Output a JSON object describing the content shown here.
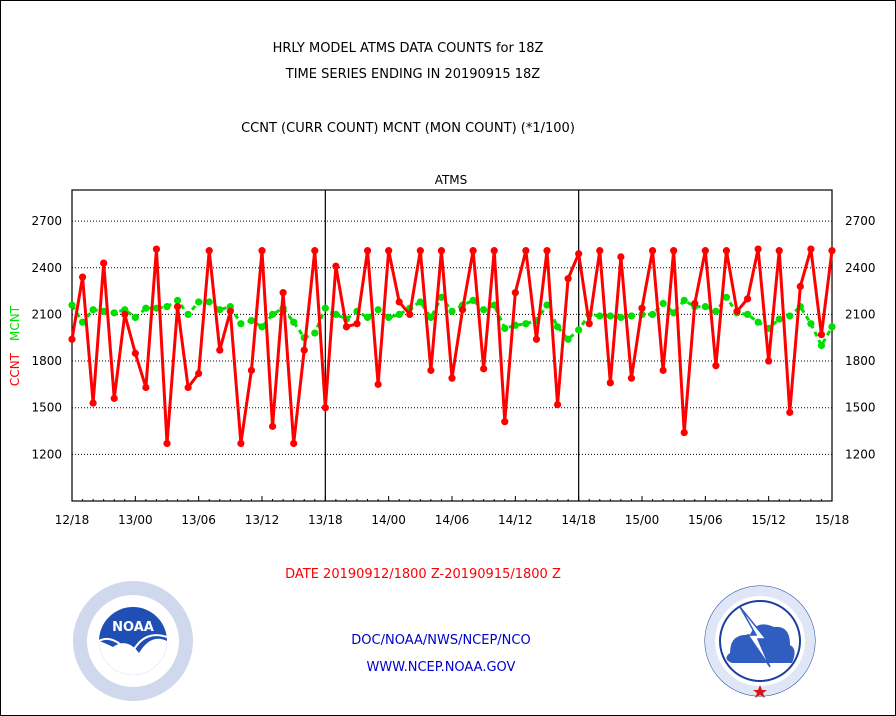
{
  "chart_data": {
    "type": "line",
    "title": [
      "HRLY MODEL ATMS DATA COUNTS for 18Z",
      "TIME SERIES ENDING IN 20190915 18Z"
    ],
    "subtitle": "CCNT (CURR COUNT) MCNT (MON COUNT) (*1/100)",
    "panel_label": "ATMS",
    "ylabel_left": [
      "CCNT",
      "MCNT"
    ],
    "xlabel": "DATE 20190912/1800 Z-20190915/1800 Z",
    "x_ticks": [
      "12/18",
      "13/00",
      "13/06",
      "13/12",
      "13/18",
      "14/00",
      "14/06",
      "14/12",
      "14/18",
      "15/00",
      "15/06",
      "15/12",
      "15/18"
    ],
    "y_ticks": [
      1200,
      1500,
      1800,
      2100,
      2400,
      2700
    ],
    "ylim": [
      900,
      2900
    ],
    "xlim": [
      0,
      72
    ],
    "grid": "horizontal dotted",
    "colors": {
      "ccnt": "#ff0000",
      "mcnt": "#00e000",
      "axis": "#000000",
      "footer": "#0000cc"
    },
    "series": [
      {
        "name": "CCNT",
        "color": "#ff0000",
        "values": [
          1940,
          2340,
          1530,
          2430,
          1560,
          2100,
          1850,
          1630,
          2520,
          1270,
          2150,
          1630,
          1720,
          2510,
          1870,
          2120,
          1270,
          1740,
          2510,
          1380,
          2240,
          1270,
          1870,
          2510,
          1500,
          2410,
          2020,
          2040,
          2510,
          1650,
          2510,
          2180,
          2100,
          2510,
          1740,
          2510,
          1690,
          2130,
          2510,
          1750,
          2510,
          1410,
          2240,
          2510,
          1940,
          2510,
          1520,
          2330,
          2490,
          2040,
          2510,
          1660,
          2470,
          1690,
          2140,
          2510,
          1740,
          2510,
          1340,
          2170,
          2510,
          1770,
          2510,
          2120,
          2200,
          2520,
          1800,
          2510,
          1470,
          2280,
          2520,
          1970,
          2510
        ]
      },
      {
        "name": "MCNT",
        "color": "#00e000",
        "values": [
          2160,
          2050,
          2130,
          2120,
          2110,
          2130,
          2080,
          2140,
          2140,
          2150,
          2190,
          2100,
          2180,
          2180,
          2130,
          2150,
          2040,
          2060,
          2020,
          2100,
          2140,
          2050,
          1950,
          1980,
          2140,
          2100,
          2070,
          2120,
          2080,
          2130,
          2080,
          2100,
          2140,
          2180,
          2080,
          2210,
          2120,
          2160,
          2190,
          2130,
          2160,
          2010,
          2030,
          2040,
          2060,
          2160,
          2020,
          1940,
          2000,
          2100,
          2090,
          2090,
          2080,
          2090,
          2100,
          2100,
          2170,
          2110,
          2190,
          2150,
          2150,
          2120,
          2210,
          2110,
          2100,
          2050,
          2010,
          2070,
          2090,
          2150,
          2040,
          1900,
          2020
        ]
      }
    ]
  },
  "footer": {
    "org": "DOC/NOAA/NWS/NCEP/NCO",
    "url": "WWW.NCEP.NOAA.GOV"
  },
  "logos": {
    "noaa_text": "NOAA",
    "noaa_ring": "NATIONAL OCEANIC AND ATMOSPHERIC ADMINISTRATION • U.S. DEPARTMENT OF COMMERCE",
    "nws_ring": "NATIONAL WEATHER SERVICE"
  }
}
